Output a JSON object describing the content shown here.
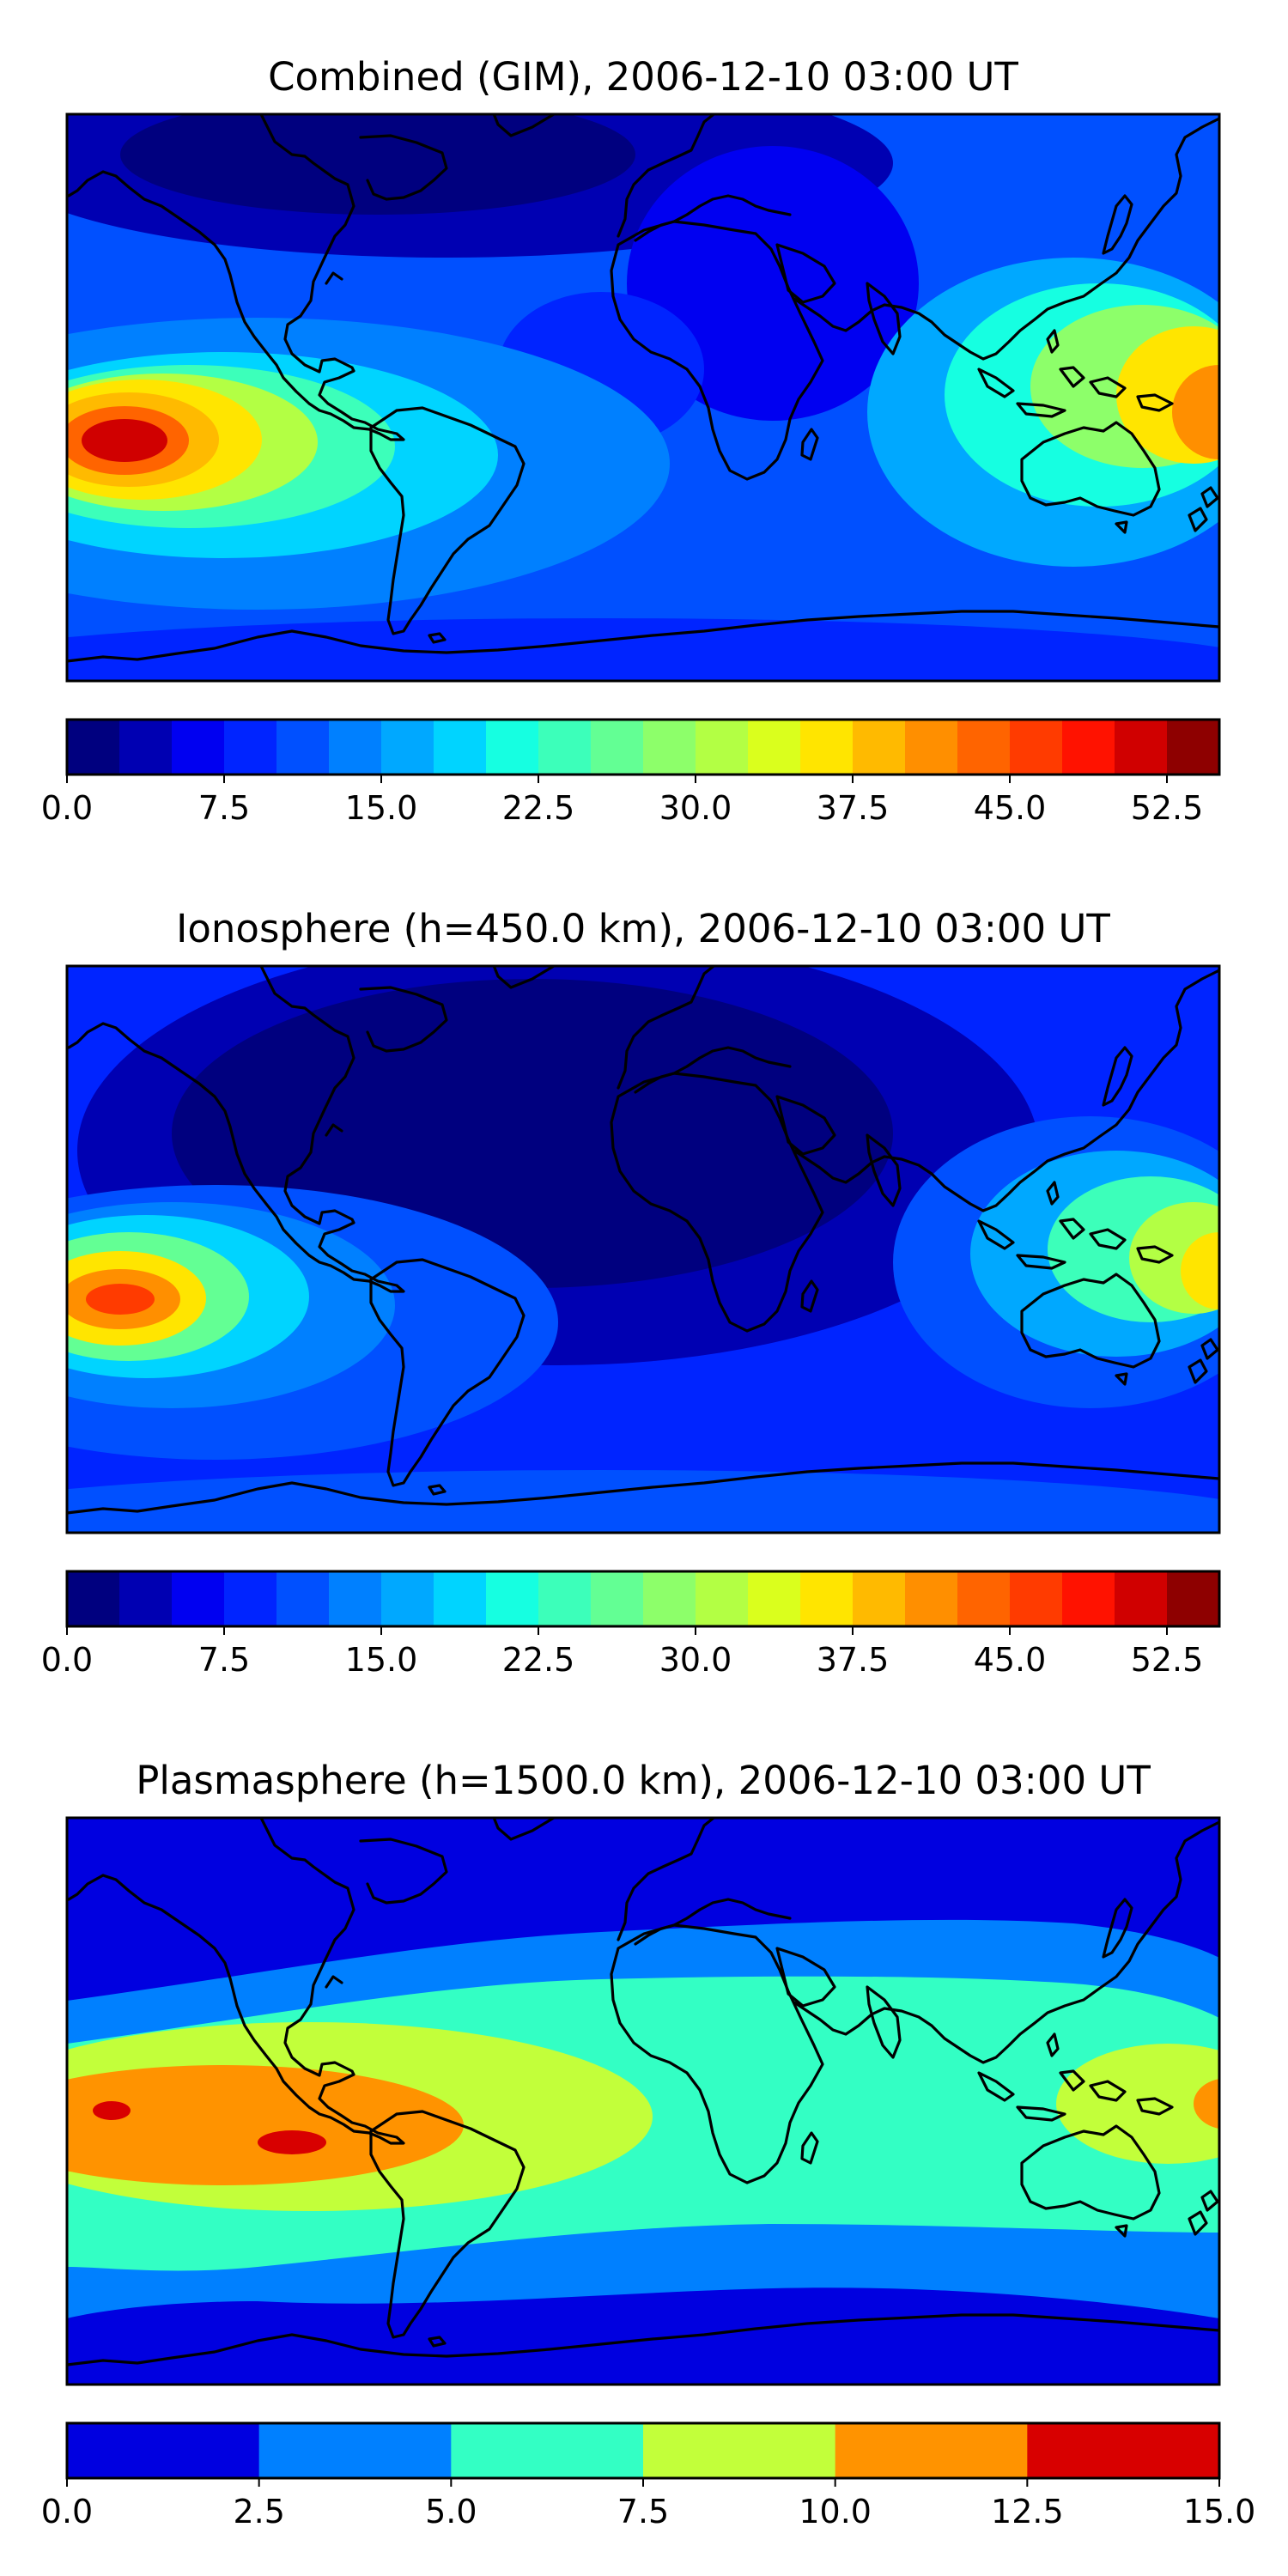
{
  "panels": [
    {
      "title": "Combined (GIM), 2006-12-10 03:00 UT",
      "colorbar": {
        "ticks": [
          "0.0",
          "7.5",
          "15.0",
          "22.5",
          "30.0",
          "37.5",
          "45.0",
          "52.5"
        ],
        "colors": [
          "#00007f",
          "#0000b2",
          "#0000f1",
          "#0024ff",
          "#0050ff",
          "#0080ff",
          "#00a8ff",
          "#00d4ff",
          "#16ffe1",
          "#3cffba",
          "#63ff94",
          "#8dff6a",
          "#b3ff44",
          "#daff1d",
          "#ffe500",
          "#ffba00",
          "#ff8f00",
          "#ff6400",
          "#ff3b00",
          "#ff1200",
          "#d00000",
          "#8e0000"
        ]
      }
    },
    {
      "title": "Ionosphere  (h=450.0 km), 2006-12-10 03:00 UT",
      "colorbar": {
        "ticks": [
          "0.0",
          "7.5",
          "15.0",
          "22.5",
          "30.0",
          "37.5",
          "45.0",
          "52.5"
        ],
        "colors": [
          "#00007f",
          "#0000b2",
          "#0000f1",
          "#0024ff",
          "#0050ff",
          "#0080ff",
          "#00a8ff",
          "#00d4ff",
          "#16ffe1",
          "#3cffba",
          "#63ff94",
          "#8dff6a",
          "#b3ff44",
          "#daff1d",
          "#ffe500",
          "#ffba00",
          "#ff8f00",
          "#ff6400",
          "#ff3b00",
          "#ff1200",
          "#d00000",
          "#8e0000"
        ]
      }
    },
    {
      "title": "Plasmasphere (h=1500.0 km), 2006-12-10 03:00 UT",
      "colorbar": {
        "ticks": [
          "0.0",
          "2.5",
          "5.0",
          "7.5",
          "10.0",
          "12.5",
          "15.0"
        ],
        "colors": [
          "#0000e0",
          "#0080ff",
          "#33ffc4",
          "#c2ff3a",
          "#ff9300",
          "#d80000"
        ]
      }
    }
  ]
}
